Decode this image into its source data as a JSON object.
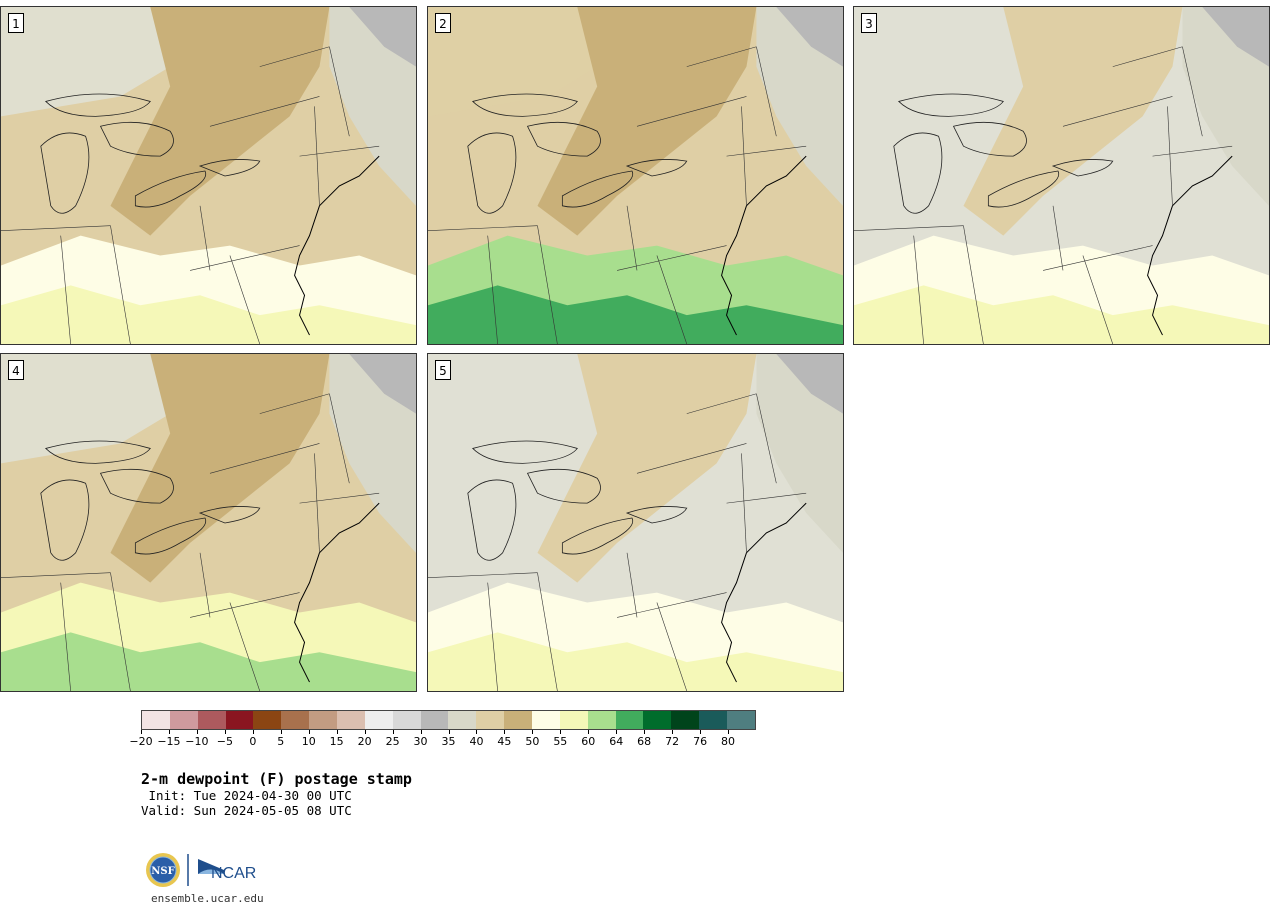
{
  "title": "2-m dewpoint (F) postage stamp",
  "init_line": " Init: Tue 2024-04-30 00 UTC",
  "valid_line": "Valid: Sun 2024-05-05 08 UTC",
  "footer_url": "ensemble.ucar.edu",
  "logo_text": "NCAR",
  "nsf_text": "NSF",
  "colorbar": {
    "colors": [
      "#f2e4e4",
      "#cf9a9e",
      "#ad5a5e",
      "#8a1520",
      "#8b4513",
      "#a8714d",
      "#c39c82",
      "#dbbfb0",
      "#eeeeee",
      "#d8d8d8",
      "#b8b8b8",
      "#d8d8c9",
      "#dfcfa5",
      "#c9b079",
      "#fefde6",
      "#f5f8b8",
      "#a8de8e",
      "#41ac5d",
      "#006d2c",
      "#00441b",
      "#1a5b5a",
      "#4f7e80"
    ],
    "labels": [
      "−20",
      "−15",
      "−10",
      "−5",
      "0",
      "5",
      "10",
      "15",
      "20",
      "25",
      "30",
      "35",
      "40",
      "45",
      "50",
      "55",
      "60",
      "64",
      "68",
      "72",
      "76",
      "80"
    ]
  },
  "panels": [
    {
      "number": "1",
      "palette": [
        "#dfcfa5",
        "#c9b079",
        "#e0e0d4",
        "#fefde6",
        "#f5f8b8"
      ]
    },
    {
      "number": "2",
      "palette": [
        "#dfcfa5",
        "#c9b079",
        "#f5f8b8",
        "#a8de8e",
        "#41ac5d"
      ]
    },
    {
      "number": "3",
      "palette": [
        "#e0e0d4",
        "#dfcfa5",
        "#c9b079",
        "#fefde6",
        "#f5f8b8"
      ]
    },
    {
      "number": "4",
      "palette": [
        "#dfcfa5",
        "#c9b079",
        "#e0e0d4",
        "#f5f8b8",
        "#a8de8e"
      ]
    },
    {
      "number": "5",
      "palette": [
        "#e0e0d4",
        "#dfcfa5",
        "#c9b079",
        "#fefde6",
        "#f5f8b8"
      ]
    }
  ]
}
